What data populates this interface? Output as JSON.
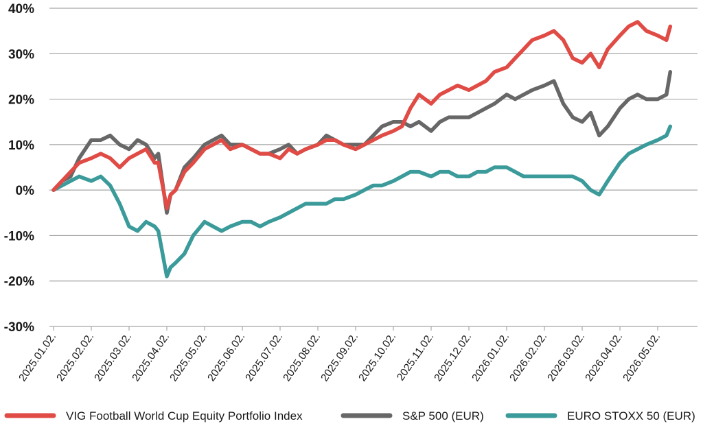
{
  "chart_data": {
    "type": "line",
    "title": "",
    "xlabel": "",
    "ylabel": "",
    "ylim": [
      -30,
      40
    ],
    "y_ticks": [
      {
        "value": 40,
        "label": "40%"
      },
      {
        "value": 30,
        "label": "30%"
      },
      {
        "value": 20,
        "label": "20%"
      },
      {
        "value": 10,
        "label": "10%"
      },
      {
        "value": 0,
        "label": "0%"
      },
      {
        "value": -10,
        "label": "-10%"
      },
      {
        "value": -20,
        "label": "-20%"
      },
      {
        "value": -30,
        "label": "-30%"
      }
    ],
    "x_ticks": [
      "2025.01.02.",
      "2025.02.02.",
      "2025.03.02.",
      "2025.04.02.",
      "2025.05.02.",
      "2025.06.02.",
      "2025.07.02.",
      "2025.08.02.",
      "2025.09.02.",
      "2025.10.02.",
      "2025.11.02.",
      "2025.12.02.",
      "2026.01.02.",
      "2026.02.02.",
      "2026.03.02.",
      "2026.04.02.",
      "2026.05.02."
    ],
    "grid": "horizontal",
    "legend_position": "bottom",
    "series": [
      {
        "name": "VIG Football World Cup Equity Portfolio Index",
        "color": "#e04b45",
        "x": [
          "2025.01.02.",
          "2025.01.09.",
          "2025.01.16.",
          "2025.01.23.",
          "2025.02.02.",
          "2025.02.09.",
          "2025.02.16.",
          "2025.02.23.",
          "2025.03.02.",
          "2025.03.09.",
          "2025.03.16.",
          "2025.03.23.",
          "2025.03.26.",
          "2025.04.02.",
          "2025.04.05.",
          "2025.04.09.",
          "2025.04.16.",
          "2025.04.23.",
          "2025.05.02.",
          "2025.05.09.",
          "2025.05.16.",
          "2025.05.23.",
          "2025.06.02.",
          "2025.06.09.",
          "2025.06.16.",
          "2025.06.23.",
          "2025.07.02.",
          "2025.07.09.",
          "2025.07.16.",
          "2025.07.23.",
          "2025.08.02.",
          "2025.08.09.",
          "2025.08.16.",
          "2025.08.23.",
          "2025.09.02.",
          "2025.09.09.",
          "2025.09.16.",
          "2025.09.23.",
          "2025.10.02.",
          "2025.10.09.",
          "2025.10.16.",
          "2025.10.23.",
          "2025.11.02.",
          "2025.11.09.",
          "2025.11.16.",
          "2025.11.23.",
          "2025.12.02.",
          "2025.12.09.",
          "2025.12.16.",
          "2025.12.23.",
          "2026.01.02.",
          "2026.01.09.",
          "2026.01.16.",
          "2026.01.23.",
          "2026.02.02.",
          "2026.02.09.",
          "2026.02.16.",
          "2026.02.23.",
          "2026.03.02.",
          "2026.03.09.",
          "2026.03.16.",
          "2026.03.23.",
          "2026.04.02.",
          "2026.04.09.",
          "2026.04.16.",
          "2026.04.23.",
          "2026.05.02.",
          "2026.05.09.",
          "2026.05.12."
        ],
        "values": [
          0,
          2,
          4,
          6,
          7,
          8,
          7,
          5,
          7,
          8,
          9,
          6,
          6,
          -4,
          -1,
          0,
          4,
          6,
          9,
          10,
          11,
          9,
          10,
          9,
          8,
          8,
          7,
          9,
          8,
          9,
          10,
          11,
          11,
          10,
          9,
          10,
          11,
          12,
          13,
          14,
          18,
          21,
          19,
          21,
          22,
          23,
          22,
          23,
          24,
          26,
          27,
          29,
          31,
          33,
          34,
          35,
          33,
          29,
          28,
          30,
          27,
          31,
          34,
          36,
          37,
          35,
          34,
          33,
          36
        ]
      },
      {
        "name": "S&P 500 (EUR)",
        "color": "#676767",
        "x": [
          "2025.01.02.",
          "2025.01.09.",
          "2025.01.16.",
          "2025.01.23.",
          "2025.02.02.",
          "2025.02.09.",
          "2025.02.16.",
          "2025.02.23.",
          "2025.03.02.",
          "2025.03.09.",
          "2025.03.16.",
          "2025.03.23.",
          "2025.03.26.",
          "2025.04.02.",
          "2025.04.05.",
          "2025.04.09.",
          "2025.04.16.",
          "2025.04.23.",
          "2025.05.02.",
          "2025.05.09.",
          "2025.05.16.",
          "2025.05.23.",
          "2025.06.02.",
          "2025.06.09.",
          "2025.06.16.",
          "2025.06.23.",
          "2025.07.02.",
          "2025.07.09.",
          "2025.07.16.",
          "2025.07.23.",
          "2025.08.02.",
          "2025.08.09.",
          "2025.08.16.",
          "2025.08.23.",
          "2025.09.02.",
          "2025.09.09.",
          "2025.09.16.",
          "2025.09.23.",
          "2025.10.02.",
          "2025.10.09.",
          "2025.10.16.",
          "2025.10.23.",
          "2025.11.02.",
          "2025.11.09.",
          "2025.11.16.",
          "2025.11.23.",
          "2025.12.02.",
          "2025.12.09.",
          "2025.12.16.",
          "2025.12.23.",
          "2026.01.02.",
          "2026.01.09.",
          "2026.01.16.",
          "2026.01.23.",
          "2026.02.02.",
          "2026.02.09.",
          "2026.02.16.",
          "2026.02.23.",
          "2026.03.02.",
          "2026.03.09.",
          "2026.03.16.",
          "2026.03.23.",
          "2026.04.02.",
          "2026.04.09.",
          "2026.04.16.",
          "2026.04.23.",
          "2026.05.02.",
          "2026.05.09.",
          "2026.05.12."
        ],
        "values": [
          0,
          2,
          3,
          7,
          11,
          11,
          12,
          10,
          9,
          11,
          10,
          7,
          8,
          -5,
          -1,
          0,
          5,
          7,
          10,
          11,
          12,
          10,
          10,
          9,
          8,
          8,
          9,
          10,
          8,
          9,
          10,
          12,
          11,
          10,
          10,
          10,
          12,
          14,
          15,
          15,
          14,
          15,
          13,
          15,
          16,
          16,
          16,
          17,
          18,
          19,
          21,
          20,
          21,
          22,
          23,
          24,
          19,
          16,
          15,
          17,
          12,
          14,
          18,
          20,
          21,
          20,
          20,
          21,
          26
        ]
      },
      {
        "name": "EURO STOXX 50 (EUR)",
        "color": "#3b9a9a",
        "x": [
          "2025.01.02.",
          "2025.01.09.",
          "2025.01.16.",
          "2025.01.23.",
          "2025.02.02.",
          "2025.02.09.",
          "2025.02.16.",
          "2025.02.23.",
          "2025.03.02.",
          "2025.03.09.",
          "2025.03.16.",
          "2025.03.23.",
          "2025.03.26.",
          "2025.04.02.",
          "2025.04.05.",
          "2025.04.09.",
          "2025.04.16.",
          "2025.04.23.",
          "2025.05.02.",
          "2025.05.09.",
          "2025.05.16.",
          "2025.05.23.",
          "2025.06.02.",
          "2025.06.09.",
          "2025.06.16.",
          "2025.06.23.",
          "2025.07.02.",
          "2025.07.09.",
          "2025.07.16.",
          "2025.07.23.",
          "2025.08.02.",
          "2025.08.09.",
          "2025.08.16.",
          "2025.08.23.",
          "2025.09.02.",
          "2025.09.09.",
          "2025.09.16.",
          "2025.09.23.",
          "2025.10.02.",
          "2025.10.09.",
          "2025.10.16.",
          "2025.10.23.",
          "2025.11.02.",
          "2025.11.09.",
          "2025.11.16.",
          "2025.11.23.",
          "2025.12.02.",
          "2025.12.09.",
          "2025.12.16.",
          "2025.12.23.",
          "2026.01.02.",
          "2026.01.09.",
          "2026.01.16.",
          "2026.01.23.",
          "2026.02.02.",
          "2026.02.09.",
          "2026.02.16.",
          "2026.02.23.",
          "2026.03.02.",
          "2026.03.09.",
          "2026.03.16.",
          "2026.03.23.",
          "2026.04.02.",
          "2026.04.09.",
          "2026.04.16.",
          "2026.04.23.",
          "2026.05.02.",
          "2026.05.09.",
          "2026.05.12."
        ],
        "values": [
          0,
          1,
          2,
          3,
          2,
          3,
          1,
          -3,
          -8,
          -9,
          -7,
          -8,
          -9,
          -19,
          -17,
          -16,
          -14,
          -10,
          -7,
          -8,
          -9,
          -8,
          -7,
          -7,
          -8,
          -7,
          -6,
          -5,
          -4,
          -3,
          -3,
          -3,
          -2,
          -2,
          -1,
          0,
          1,
          1,
          2,
          3,
          4,
          4,
          3,
          4,
          4,
          3,
          3,
          4,
          4,
          5,
          5,
          4,
          3,
          3,
          3,
          3,
          3,
          3,
          2,
          0,
          -1,
          2,
          6,
          8,
          9,
          10,
          11,
          12,
          14
        ]
      }
    ]
  }
}
